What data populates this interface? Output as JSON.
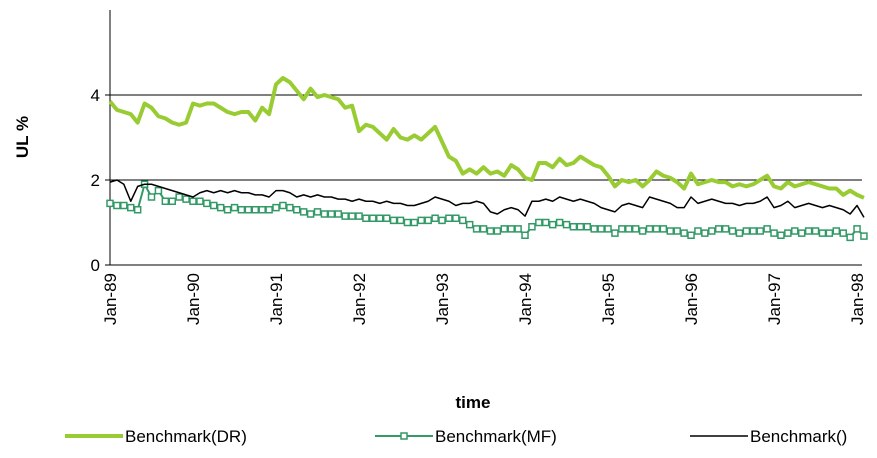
{
  "chart_data": {
    "type": "line",
    "x_label": "time",
    "y_label": "UL %",
    "categories": [
      "Jan-89",
      null,
      null,
      null,
      null,
      null,
      null,
      null,
      null,
      null,
      null,
      null,
      "Jan-90",
      null,
      null,
      null,
      null,
      null,
      null,
      null,
      null,
      null,
      null,
      null,
      "Jan-91",
      null,
      null,
      null,
      null,
      null,
      null,
      null,
      null,
      null,
      null,
      null,
      "Jan-92",
      null,
      null,
      null,
      null,
      null,
      null,
      null,
      null,
      null,
      null,
      null,
      "Jan-93",
      null,
      null,
      null,
      null,
      null,
      null,
      null,
      null,
      null,
      null,
      null,
      "Jan-94",
      null,
      null,
      null,
      null,
      null,
      null,
      null,
      null,
      null,
      null,
      null,
      "Jan-95",
      null,
      null,
      null,
      null,
      null,
      null,
      null,
      null,
      null,
      null,
      null,
      "Jan-96",
      null,
      null,
      null,
      null,
      null,
      null,
      null,
      null,
      null,
      null,
      null,
      "Jan-97",
      null,
      null,
      null,
      null,
      null,
      null,
      null,
      null,
      null,
      null,
      null,
      "Jan-98",
      null
    ],
    "series": [
      {
        "name": "Benchmark(DR)",
        "color": "#99cc33",
        "marker": "none",
        "values": [
          3.85,
          3.65,
          3.6,
          3.55,
          3.35,
          3.8,
          3.7,
          3.5,
          3.45,
          3.35,
          3.3,
          3.35,
          3.8,
          3.75,
          3.8,
          3.8,
          3.7,
          3.6,
          3.55,
          3.6,
          3.6,
          3.4,
          3.7,
          3.55,
          4.25,
          4.4,
          4.3,
          4.1,
          3.9,
          4.15,
          3.95,
          4.0,
          3.95,
          3.9,
          3.7,
          3.75,
          3.15,
          3.3,
          3.25,
          3.1,
          2.95,
          3.2,
          3.0,
          2.95,
          3.05,
          2.95,
          3.1,
          3.25,
          2.9,
          2.55,
          2.45,
          2.15,
          2.25,
          2.15,
          2.3,
          2.15,
          2.2,
          2.1,
          2.35,
          2.25,
          2.05,
          2.0,
          2.4,
          2.4,
          2.3,
          2.5,
          2.35,
          2.4,
          2.55,
          2.45,
          2.35,
          2.3,
          2.1,
          1.85,
          2.0,
          1.95,
          2.0,
          1.85,
          2.0,
          2.2,
          2.1,
          2.05,
          1.95,
          1.8,
          2.15,
          1.9,
          1.95,
          2.0,
          1.95,
          1.95,
          1.85,
          1.9,
          1.85,
          1.9,
          2.0,
          2.1,
          1.85,
          1.8,
          1.95,
          1.85,
          1.9,
          1.95,
          1.9,
          1.85,
          1.8,
          1.8,
          1.65,
          1.75,
          1.65,
          1.58
        ]
      },
      {
        "name": "Benchmark(MF)",
        "color": "#339966",
        "marker": "square",
        "values": [
          1.45,
          1.4,
          1.4,
          1.35,
          1.3,
          1.9,
          1.6,
          1.75,
          1.5,
          1.5,
          1.6,
          1.55,
          1.5,
          1.5,
          1.45,
          1.4,
          1.35,
          1.3,
          1.35,
          1.3,
          1.3,
          1.3,
          1.3,
          1.3,
          1.35,
          1.4,
          1.35,
          1.3,
          1.25,
          1.2,
          1.25,
          1.2,
          1.2,
          1.2,
          1.15,
          1.15,
          1.15,
          1.1,
          1.1,
          1.1,
          1.1,
          1.05,
          1.05,
          1.0,
          1.0,
          1.05,
          1.05,
          1.1,
          1.05,
          1.1,
          1.1,
          1.05,
          0.95,
          0.85,
          0.85,
          0.8,
          0.8,
          0.85,
          0.85,
          0.85,
          0.7,
          0.9,
          1.0,
          1.0,
          0.95,
          1.0,
          0.95,
          0.9,
          0.9,
          0.9,
          0.85,
          0.85,
          0.85,
          0.75,
          0.85,
          0.85,
          0.85,
          0.8,
          0.85,
          0.85,
          0.85,
          0.8,
          0.8,
          0.75,
          0.7,
          0.8,
          0.75,
          0.8,
          0.85,
          0.85,
          0.8,
          0.75,
          0.8,
          0.8,
          0.8,
          0.85,
          0.75,
          0.7,
          0.75,
          0.8,
          0.75,
          0.8,
          0.8,
          0.75,
          0.75,
          0.8,
          0.75,
          0.65,
          0.85,
          0.68
        ]
      },
      {
        "name": "Benchmark()",
        "color": "#000000",
        "marker": "none",
        "values": [
          1.95,
          2.0,
          1.9,
          1.5,
          1.85,
          1.9,
          1.9,
          1.85,
          1.8,
          1.75,
          1.7,
          1.65,
          1.6,
          1.7,
          1.75,
          1.7,
          1.75,
          1.7,
          1.75,
          1.7,
          1.7,
          1.65,
          1.65,
          1.6,
          1.75,
          1.75,
          1.7,
          1.6,
          1.65,
          1.6,
          1.65,
          1.6,
          1.6,
          1.55,
          1.55,
          1.5,
          1.55,
          1.5,
          1.5,
          1.45,
          1.5,
          1.45,
          1.45,
          1.4,
          1.4,
          1.45,
          1.5,
          1.6,
          1.55,
          1.5,
          1.4,
          1.45,
          1.45,
          1.5,
          1.45,
          1.25,
          1.2,
          1.3,
          1.35,
          1.3,
          1.15,
          1.5,
          1.5,
          1.55,
          1.5,
          1.6,
          1.55,
          1.5,
          1.55,
          1.5,
          1.45,
          1.35,
          1.3,
          1.25,
          1.4,
          1.45,
          1.4,
          1.35,
          1.6,
          1.55,
          1.5,
          1.45,
          1.35,
          1.35,
          1.6,
          1.45,
          1.5,
          1.55,
          1.5,
          1.45,
          1.45,
          1.4,
          1.45,
          1.45,
          1.5,
          1.6,
          1.35,
          1.4,
          1.5,
          1.35,
          1.4,
          1.45,
          1.4,
          1.35,
          1.4,
          1.35,
          1.3,
          1.2,
          1.4,
          1.12
        ]
      }
    ],
    "ylim": [
      0,
      6
    ],
    "yticks": [
      0,
      2,
      4
    ],
    "grid": true,
    "legend": "bottom"
  }
}
